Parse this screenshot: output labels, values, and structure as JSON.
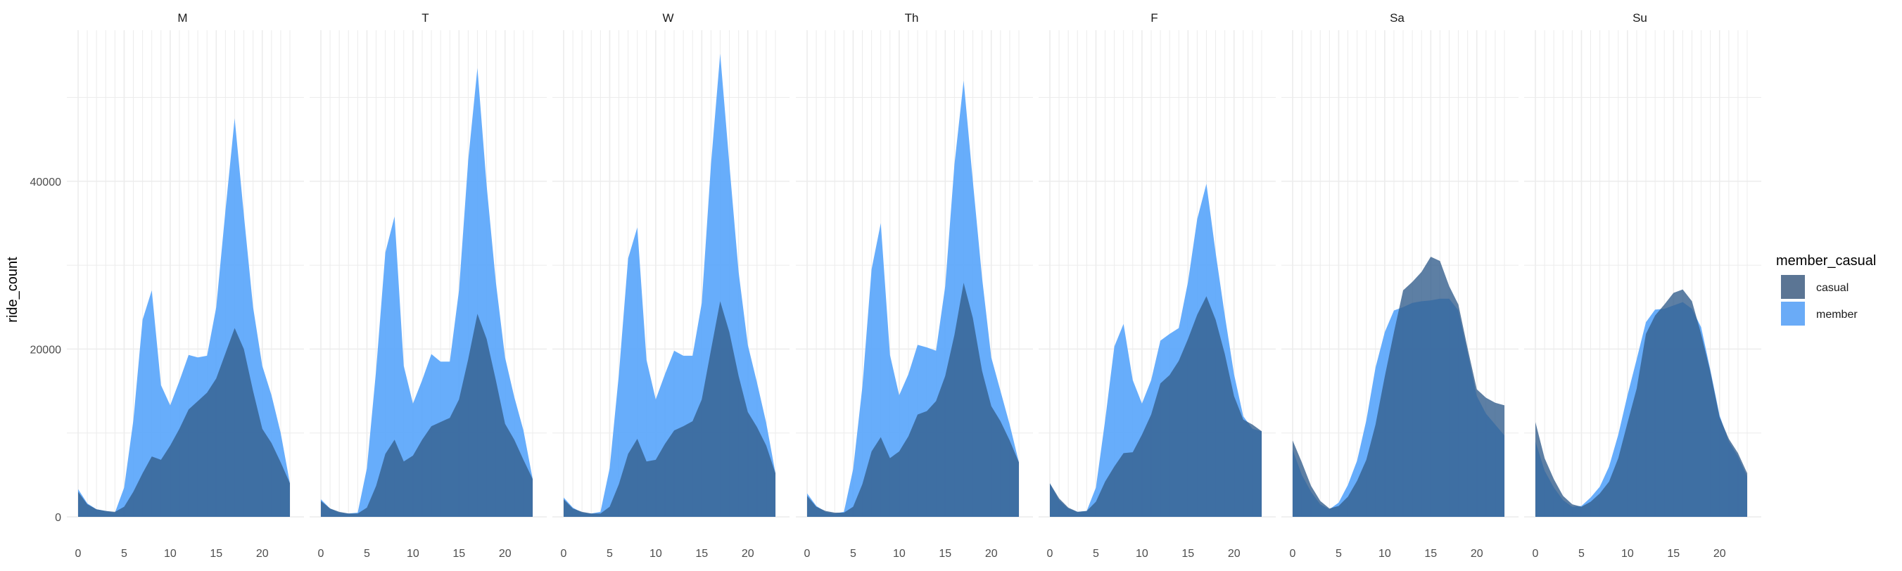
{
  "chart_data": {
    "type": "area",
    "facet_by": "day of week",
    "facets": [
      {
        "label": "M",
        "series": [
          {
            "name": "casual",
            "values": [
              3000,
              1500,
              900,
              700,
              600,
              1200,
              3000,
              5200,
              7200,
              6800,
              8500,
              10500,
              12800,
              13800,
              14800,
              16500,
              19500,
              22500,
              20000,
              15000,
              10500,
              8800,
              6500,
              4000
            ]
          },
          {
            "name": "member",
            "values": [
              3300,
              1600,
              900,
              700,
              500,
              3500,
              11500,
              23500,
              27000,
              15700,
              13300,
              16200,
              19300,
              19000,
              19200,
              25000,
              36500,
              47500,
              36000,
              25000,
              18000,
              14500,
              10000,
              4000
            ]
          }
        ]
      },
      {
        "label": "T",
        "series": [
          {
            "name": "casual",
            "values": [
              1900,
              1000,
              600,
              400,
              400,
              1100,
              3700,
              7500,
              9200,
              6600,
              7300,
              9200,
              10800,
              11300,
              11800,
              14000,
              18800,
              24200,
              21200,
              16300,
              11100,
              9200,
              6800,
              4500
            ]
          },
          {
            "name": "member",
            "values": [
              2100,
              1000,
              500,
              400,
              500,
              5800,
              17500,
              31500,
              35800,
              18000,
              13500,
              16300,
              19400,
              18500,
              18500,
              27000,
              42500,
              53500,
              39500,
              28000,
              19000,
              14300,
              10300,
              4500
            ]
          }
        ]
      },
      {
        "label": "W",
        "series": [
          {
            "name": "casual",
            "values": [
              2100,
              1000,
              600,
              400,
              400,
              1200,
              3900,
              7500,
              9300,
              6600,
              6800,
              8700,
              10300,
              10800,
              11400,
              14000,
              19900,
              25700,
              22000,
              16800,
              12500,
              10700,
              8500,
              5200
            ]
          },
          {
            "name": "member",
            "values": [
              2300,
              1100,
              500,
              400,
              600,
              5800,
              17000,
              30800,
              34500,
              18700,
              14000,
              17000,
              19800,
              19200,
              19200,
              25500,
              42000,
              55200,
              42000,
              29200,
              20500,
              16000,
              11200,
              5200
            ]
          }
        ]
      },
      {
        "label": "Th",
        "series": [
          {
            "name": "casual",
            "values": [
              2500,
              1200,
              700,
              500,
              500,
              1200,
              3900,
              7800,
              9500,
              7000,
              7800,
              9600,
              12200,
              12600,
              13800,
              16800,
              21700,
              27900,
              23700,
              17400,
              13200,
              11400,
              9100,
              6500
            ]
          },
          {
            "name": "member",
            "values": [
              2800,
              1300,
              600,
              400,
              600,
              5700,
              15500,
              29500,
              35000,
              19300,
              14500,
              17000,
              20500,
              20200,
              19800,
              27500,
              42000,
              52000,
              40000,
              28500,
              19000,
              15000,
              11000,
              6500
            ]
          }
        ]
      },
      {
        "label": "F",
        "series": [
          {
            "name": "casual",
            "values": [
              4000,
              2200,
              1100,
              600,
              700,
              1800,
              4200,
              6000,
              7600,
              7700,
              9800,
              12200,
              15900,
              16900,
              18600,
              21200,
              24100,
              26300,
              23500,
              19400,
              14400,
              11600,
              11000,
              10200
            ]
          },
          {
            "name": "member",
            "values": [
              4000,
              2000,
              1000,
              600,
              700,
              3500,
              11500,
              20300,
              23000,
              16300,
              13500,
              16300,
              21000,
              21800,
              22500,
              28000,
              35500,
              39700,
              31500,
              24000,
              17000,
              12000,
              10500,
              10200
            ]
          }
        ]
      },
      {
        "label": "Sa",
        "series": [
          {
            "name": "casual",
            "values": [
              9100,
              6500,
              3700,
              1900,
              1000,
              1300,
              2400,
              4300,
              6800,
              11000,
              16700,
              22000,
              27000,
              28000,
              29200,
              31000,
              30500,
              27500,
              25300,
              20100,
              15200,
              14200,
              13600,
              13300
            ]
          },
          {
            "name": "member",
            "values": [
              8000,
              5000,
              3000,
              1500,
              900,
              1700,
              3800,
              6700,
              11500,
              17800,
              22000,
              24600,
              25000,
              25500,
              25700,
              25800,
              26000,
              26000,
              24600,
              19600,
              14400,
              12300,
              11000,
              9700
            ]
          }
        ]
      },
      {
        "label": "Su",
        "series": [
          {
            "name": "casual",
            "values": [
              11300,
              7000,
              4500,
              2500,
              1500,
              1200,
              1800,
              2800,
              4200,
              7000,
              11200,
              15300,
              21800,
              24000,
              25300,
              26700,
              27100,
              25700,
              21800,
              17300,
              11900,
              9300,
              7600,
              5200
            ]
          },
          {
            "name": "member",
            "values": [
              9000,
              5500,
              3500,
              2000,
              1200,
              1300,
              2300,
              3600,
              6000,
              9800,
              14500,
              18800,
              23200,
              24700,
              24800,
              25200,
              25600,
              24800,
              22600,
              17500,
              12100,
              9000,
              7200,
              4800
            ]
          }
        ]
      }
    ],
    "x": [
      0,
      1,
      2,
      3,
      4,
      5,
      6,
      7,
      8,
      9,
      10,
      11,
      12,
      13,
      14,
      15,
      16,
      17,
      18,
      19,
      20,
      21,
      22,
      23
    ],
    "x_ticks": [
      0,
      5,
      10,
      15,
      20
    ],
    "y_ticks": [
      0,
      20000,
      40000
    ],
    "ylim": [
      0,
      58000
    ],
    "xlim": [
      0,
      23
    ],
    "xlabel": "",
    "ylabel": "ride_count",
    "legend": {
      "title": "member_casual",
      "position": "right",
      "entries": [
        {
          "name": "casual",
          "color": "#5b7594"
        },
        {
          "name": "member",
          "color": "#6aabf7"
        }
      ]
    },
    "colors": {
      "casual": "#5b7594",
      "member": "#5aa6fb",
      "overlap": "#3280e3"
    },
    "grid": true
  }
}
